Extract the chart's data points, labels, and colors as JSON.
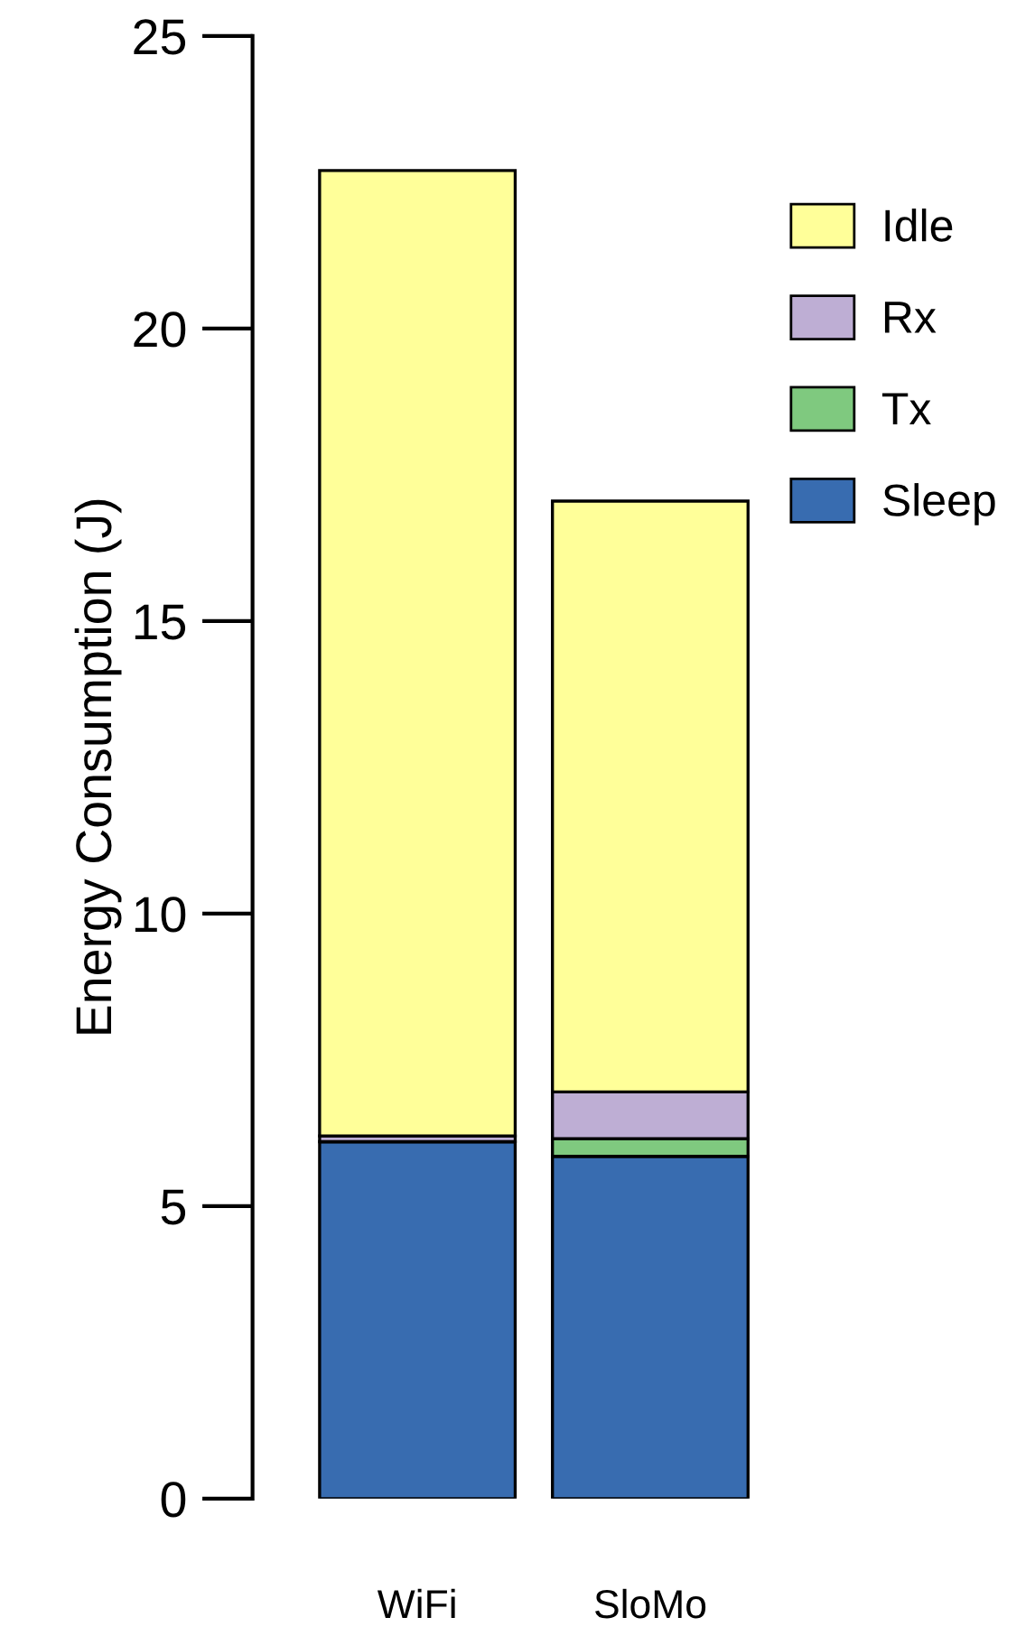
{
  "chart_data": {
    "type": "bar",
    "stacked": true,
    "ylabel": "Energy Consumption (J)",
    "categories": [
      "WiFi",
      "SloMo"
    ],
    "series": [
      {
        "name": "Sleep",
        "color": "#386cb0",
        "values": [
          6.1,
          5.85
        ]
      },
      {
        "name": "Tx",
        "color": "#7fc97f",
        "values": [
          null,
          0.3
        ]
      },
      {
        "name": "Rx",
        "color": "#beaed4",
        "values": [
          0.1,
          0.8
        ]
      },
      {
        "name": "Idle",
        "color": "#ffff99",
        "values": [
          16.5,
          10.1
        ]
      }
    ],
    "ylim": [
      0,
      25
    ],
    "yticks": [
      0,
      5,
      10,
      15,
      20,
      25
    ],
    "grid": false,
    "legend": "top right"
  }
}
